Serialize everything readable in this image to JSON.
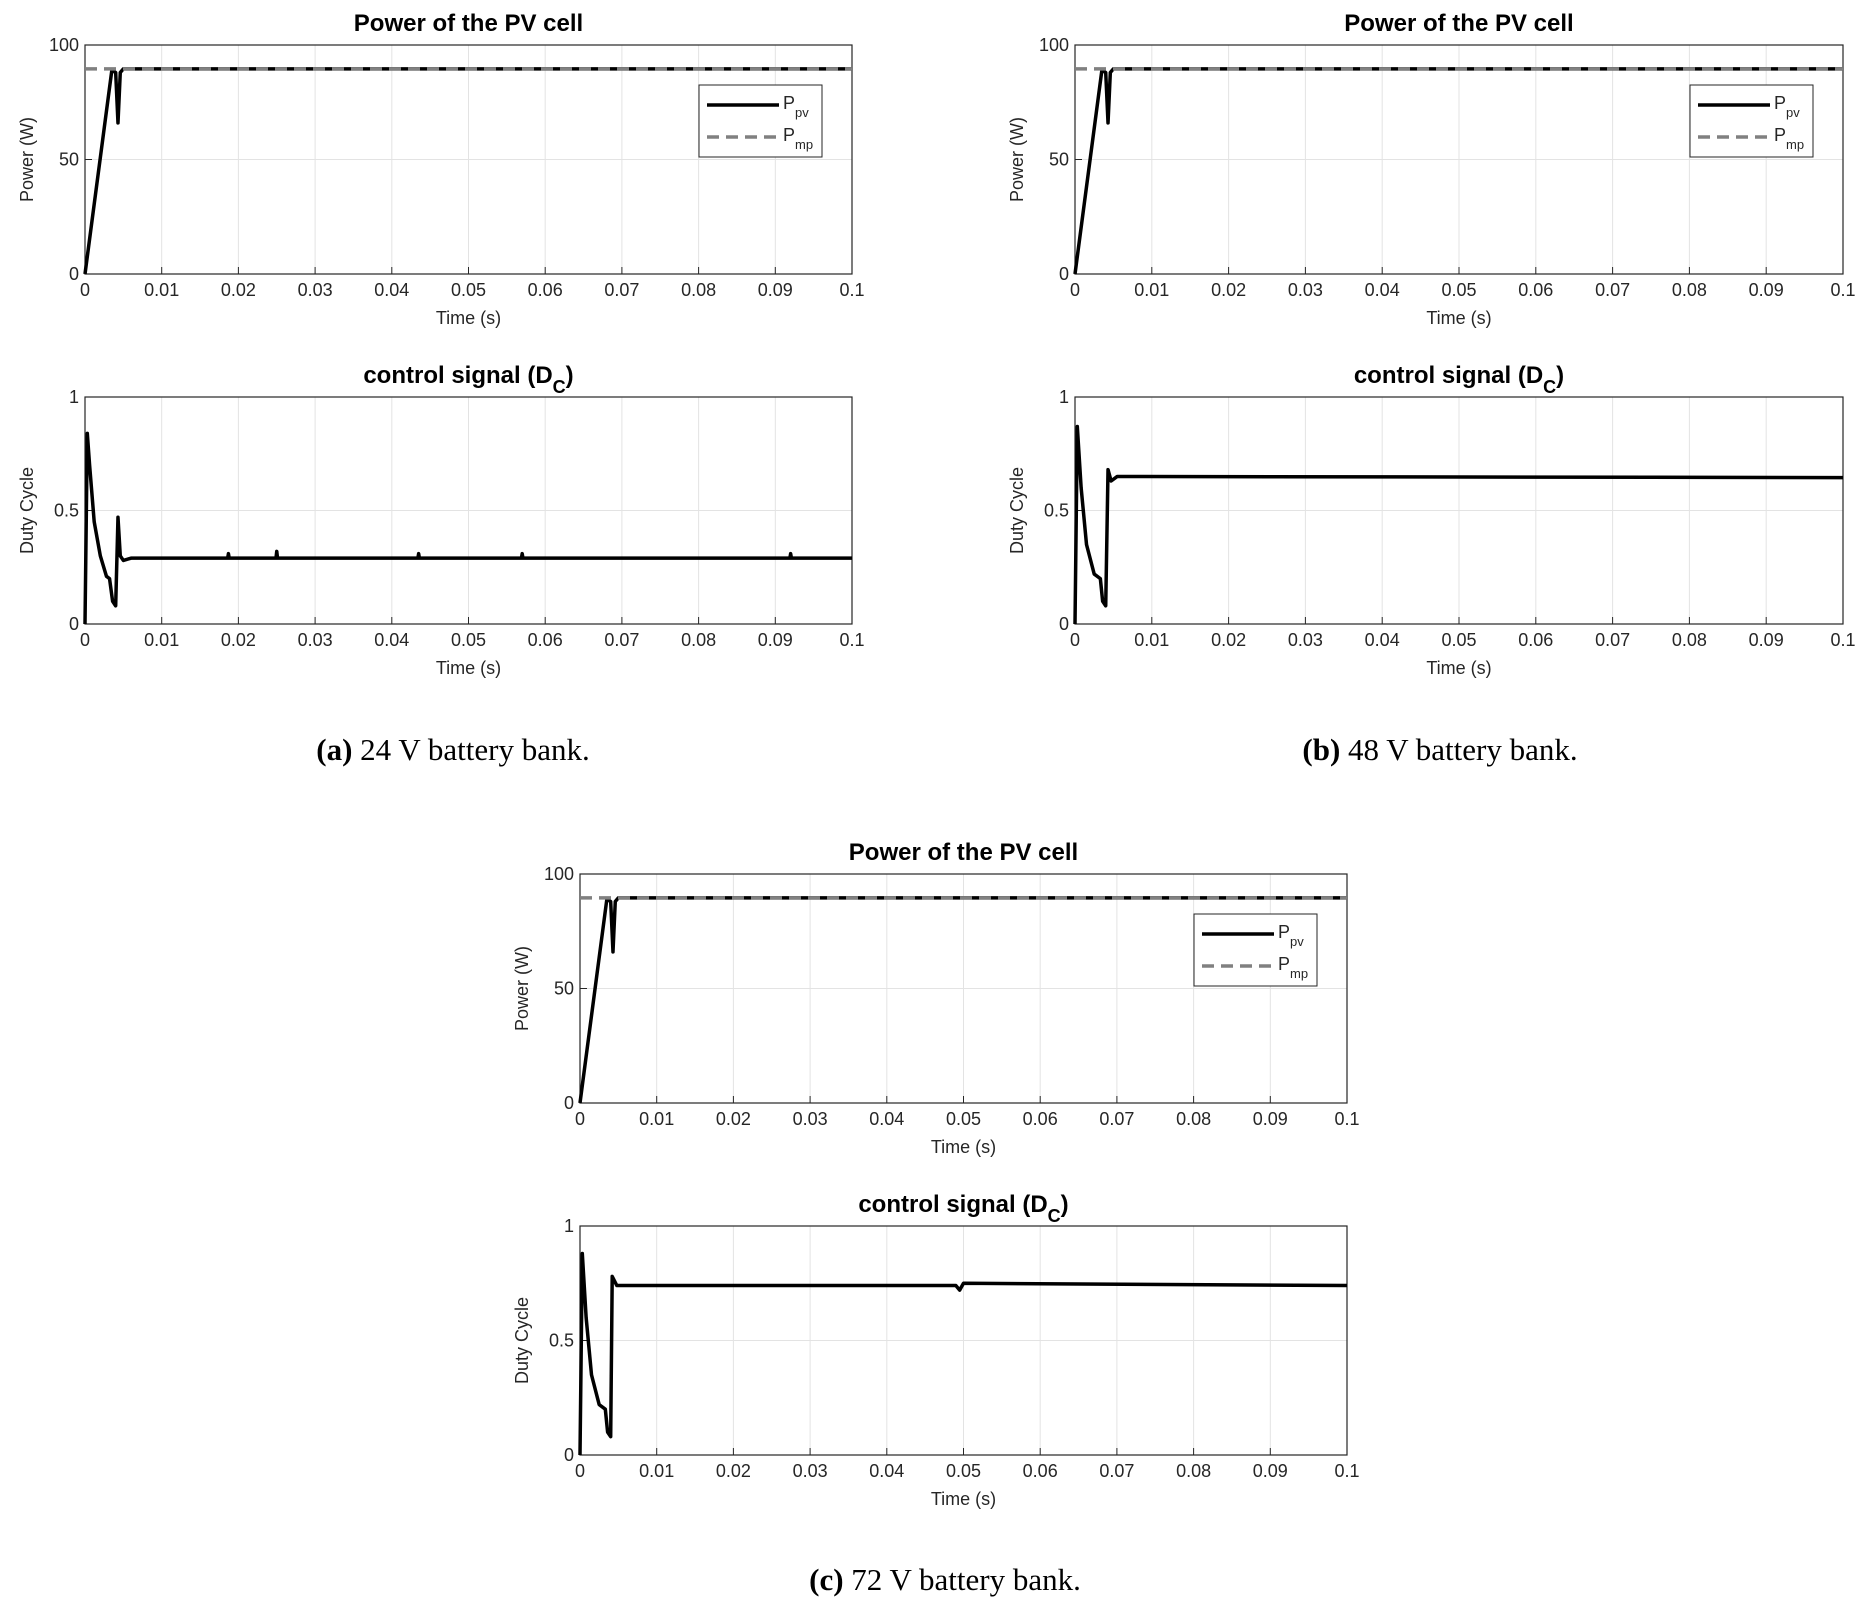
{
  "chart_data": [
    {
      "type": "line",
      "title": "Power of the PV cell",
      "xlabel": "Time (s)",
      "ylabel": "Power (W)",
      "xlim": [
        0,
        0.1
      ],
      "xticks": [
        0,
        0.01,
        0.02,
        0.03,
        0.04,
        0.05,
        0.06,
        0.07,
        0.08,
        0.09,
        0.1
      ],
      "ylim": [
        0,
        100
      ],
      "yticks": [
        0,
        50,
        100
      ],
      "grid": true,
      "legend": "upper right",
      "series": [
        {
          "name": "P",
          "name_subscript": "pv",
          "color": "#000000",
          "dash": false,
          "x": [
            0,
            0.0035,
            0.004,
            0.0043,
            0.0046,
            0.005,
            0.1
          ],
          "values": [
            0,
            89,
            88,
            66,
            88,
            89.6,
            89.6
          ]
        },
        {
          "name": "P",
          "name_subscript": "mp",
          "color": "#808080",
          "dash": true,
          "x": [
            0,
            0.1
          ],
          "values": [
            89.6,
            89.6
          ]
        }
      ]
    },
    {
      "type": "line",
      "title": "control signal (D",
      "title_subscript": "C",
      "title_end": ")",
      "xlabel": "Time (s)",
      "ylabel": "Duty Cycle",
      "xlim": [
        0,
        0.1
      ],
      "xticks": [
        0,
        0.01,
        0.02,
        0.03,
        0.04,
        0.05,
        0.06,
        0.07,
        0.08,
        0.09,
        0.1
      ],
      "ylim": [
        0,
        1
      ],
      "yticks": [
        0,
        0.5,
        1
      ],
      "grid": true,
      "series": [
        {
          "color": "#000000",
          "dash": false,
          "x": [
            0,
            0.0003,
            0.0006,
            0.0012,
            0.002,
            0.0028,
            0.0032,
            0.0036,
            0.004,
            0.0043,
            0.0046,
            0.005,
            0.006,
            0.0186,
            0.0187,
            0.0188,
            0.0249,
            0.025,
            0.0251,
            0.0434,
            0.0435,
            0.0436,
            0.0569,
            0.057,
            0.0571,
            0.0919,
            0.092,
            0.0921,
            0.1
          ],
          "values": [
            0,
            0.84,
            0.7,
            0.45,
            0.3,
            0.21,
            0.2,
            0.1,
            0.08,
            0.47,
            0.3,
            0.28,
            0.29,
            0.29,
            0.31,
            0.29,
            0.29,
            0.32,
            0.29,
            0.29,
            0.31,
            0.29,
            0.29,
            0.31,
            0.29,
            0.29,
            0.31,
            0.29,
            0.29
          ]
        }
      ]
    },
    {
      "type": "line",
      "title": "Power of the PV cell",
      "xlabel": "Time (s)",
      "ylabel": "Power (W)",
      "xlim": [
        0,
        0.1
      ],
      "xticks": [
        0,
        0.01,
        0.02,
        0.03,
        0.04,
        0.05,
        0.06,
        0.07,
        0.08,
        0.09,
        0.1
      ],
      "ylim": [
        0,
        100
      ],
      "yticks": [
        0,
        50,
        100
      ],
      "grid": true,
      "legend": "upper right",
      "series": [
        {
          "name": "P",
          "name_subscript": "pv",
          "color": "#000000",
          "dash": false,
          "x": [
            0,
            0.0035,
            0.004,
            0.0043,
            0.0046,
            0.005,
            0.1
          ],
          "values": [
            0,
            89,
            88,
            66,
            88,
            89.6,
            89.6
          ]
        },
        {
          "name": "P",
          "name_subscript": "mp",
          "color": "#808080",
          "dash": true,
          "x": [
            0,
            0.1
          ],
          "values": [
            89.6,
            89.6
          ]
        }
      ]
    },
    {
      "type": "line",
      "title": "control signal (D",
      "title_subscript": "C",
      "title_end": ")",
      "xlabel": "Time (s)",
      "ylabel": "Duty Cycle",
      "xlim": [
        0,
        0.1
      ],
      "xticks": [
        0,
        0.01,
        0.02,
        0.03,
        0.04,
        0.05,
        0.06,
        0.07,
        0.08,
        0.09,
        0.1
      ],
      "ylim": [
        0,
        1
      ],
      "yticks": [
        0,
        0.5,
        1
      ],
      "grid": true,
      "series": [
        {
          "color": "#000000",
          "dash": false,
          "x": [
            0,
            0.0003,
            0.0008,
            0.0015,
            0.0025,
            0.0033,
            0.0036,
            0.004,
            0.0043,
            0.0047,
            0.0055,
            0.1
          ],
          "values": [
            0,
            0.87,
            0.6,
            0.35,
            0.22,
            0.2,
            0.1,
            0.08,
            0.68,
            0.63,
            0.65,
            0.645
          ]
        }
      ]
    },
    {
      "type": "line",
      "title": "Power of the PV cell",
      "xlabel": "Time (s)",
      "ylabel": "Power (W)",
      "xlim": [
        0,
        0.1
      ],
      "xticks": [
        0,
        0.01,
        0.02,
        0.03,
        0.04,
        0.05,
        0.06,
        0.07,
        0.08,
        0.09,
        0.1
      ],
      "ylim": [
        0,
        100
      ],
      "yticks": [
        0,
        50,
        100
      ],
      "grid": true,
      "legend": "upper right",
      "series": [
        {
          "name": "P",
          "name_subscript": "pv",
          "color": "#000000",
          "dash": false,
          "x": [
            0,
            0.0035,
            0.004,
            0.0043,
            0.0046,
            0.005,
            0.1
          ],
          "values": [
            0,
            89,
            88,
            66,
            88,
            89.6,
            89.6
          ]
        },
        {
          "name": "P",
          "name_subscript": "mp",
          "color": "#808080",
          "dash": true,
          "x": [
            0,
            0.1
          ],
          "values": [
            89.6,
            89.6
          ]
        }
      ]
    },
    {
      "type": "line",
      "title": "control signal (D",
      "title_subscript": "C",
      "title_end": ")",
      "xlabel": "Time (s)",
      "ylabel": "Duty Cycle",
      "xlim": [
        0,
        0.1
      ],
      "xticks": [
        0,
        0.01,
        0.02,
        0.03,
        0.04,
        0.05,
        0.06,
        0.07,
        0.08,
        0.09,
        0.1
      ],
      "ylim": [
        0,
        1
      ],
      "yticks": [
        0,
        0.5,
        1
      ],
      "grid": true,
      "series": [
        {
          "color": "#000000",
          "dash": false,
          "x": [
            0,
            0.0003,
            0.0008,
            0.0015,
            0.0025,
            0.0033,
            0.0036,
            0.004,
            0.0042,
            0.0048,
            0.01,
            0.049,
            0.0495,
            0.05,
            0.1
          ],
          "values": [
            0,
            0.88,
            0.6,
            0.35,
            0.22,
            0.2,
            0.1,
            0.08,
            0.78,
            0.74,
            0.74,
            0.74,
            0.72,
            0.75,
            0.74
          ]
        }
      ]
    }
  ],
  "captions": [
    {
      "label": "(a)",
      "text": "24 V battery bank."
    },
    {
      "label": "(b)",
      "text": "48 V battery bank."
    },
    {
      "label": "(c)",
      "text": "72 V battery bank."
    }
  ]
}
